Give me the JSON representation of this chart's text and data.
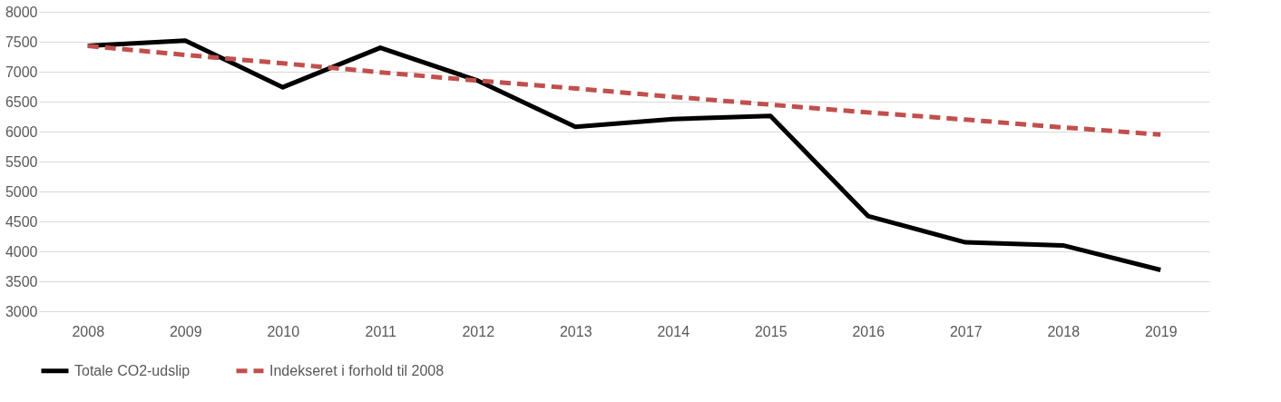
{
  "chart_data": {
    "type": "line",
    "categories": [
      "2008",
      "2009",
      "2010",
      "2011",
      "2012",
      "2013",
      "2014",
      "2015",
      "2016",
      "2017",
      "2018",
      "2019"
    ],
    "series": [
      {
        "name": "Totale CO2-udslip",
        "color": "#000000",
        "line_style": "solid",
        "values": [
          7430,
          7520,
          6740,
          7400,
          6850,
          6080,
          6210,
          6260,
          4590,
          4150,
          4100,
          3690
        ]
      },
      {
        "name": "Indekseret i forhold til 2008",
        "color": "#c0504d",
        "line_style": "dashed",
        "values": [
          7430,
          7280,
          7140,
          6990,
          6850,
          6720,
          6580,
          6450,
          6320,
          6200,
          6070,
          5950
        ]
      }
    ],
    "ylim": [
      3000,
      8000
    ],
    "yticks": [
      3000,
      3500,
      4000,
      4500,
      5000,
      5500,
      6000,
      6500,
      7000,
      7500,
      8000
    ],
    "grid": "y",
    "legend": "bottom",
    "marker": "none"
  }
}
